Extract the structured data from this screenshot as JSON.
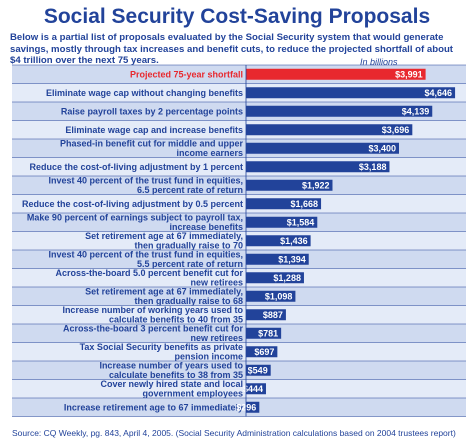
{
  "colors": {
    "title": "#22439a",
    "bar": "#22439a",
    "highlight": "#e8282e",
    "row_a": "#cfdaf0",
    "row_b": "#e4ebf8",
    "divider": "#22439a"
  },
  "header": {
    "title": "Social Security Cost-Saving Proposals",
    "intro": "Below is a partial list of proposals evaluated by the Social Security system that would generate savings, mostly through tax increases and benefit cuts, to reduce the projected shortfall of about $4 trillion over the next 75 years."
  },
  "chart_data": {
    "type": "bar",
    "orientation": "horizontal",
    "unit_label": "In billions",
    "xlim": [
      0,
      4800
    ],
    "categories": [
      [
        "Projected 75-year shortfall"
      ],
      [
        "Eliminate wage cap without changing benefits"
      ],
      [
        "Raise payroll taxes by 2 percentage points"
      ],
      [
        "Eliminate wage cap and increase benefits"
      ],
      [
        "Phased-in benefit cut for middle and upper",
        "income earners"
      ],
      [
        "Reduce the cost-of-living adjustment by 1 percent"
      ],
      [
        "Invest 40 percent of the trust fund in equities,",
        "6.5 percent rate of return"
      ],
      [
        "Reduce the cost-of-living adjustment by 0.5 percent"
      ],
      [
        "Make 90 percent of earnings subject to payroll tax,",
        "increase benefits"
      ],
      [
        "Set retirement age at 67 immediately,",
        "then gradually raise to 70"
      ],
      [
        "Invest 40 percent of the trust fund in equities,",
        "5.5 percent rate of return"
      ],
      [
        "Across-the-board 5.0 percent benefit cut for",
        "new retirees"
      ],
      [
        "Set retirement age at 67 immediately,",
        "then gradually raise to 68"
      ],
      [
        "Increase number of working years used to",
        "calculate benefits to 40 from 35"
      ],
      [
        "Across-the-board 3 percent benefit cut for",
        "new retirees"
      ],
      [
        "Tax Social Security benefits as private",
        "pension income"
      ],
      [
        "Increase number of years used to",
        "calculate benefits to 38 from 35"
      ],
      [
        "Cover newly hired state and local",
        "government employees"
      ],
      [
        "Increase retirement age to 67 immediately"
      ]
    ],
    "values": [
      3991,
      4646,
      4139,
      3696,
      3400,
      3188,
      1922,
      1668,
      1584,
      1436,
      1394,
      1288,
      1098,
      887,
      781,
      697,
      549,
      444,
      296
    ],
    "value_labels": [
      "$3,991",
      "$4,646",
      "$4,139",
      "$3,696",
      "$3,400",
      "$3,188",
      "$1,922",
      "$1,668",
      "$1,584",
      "$1,436",
      "$1,394",
      "$1,288",
      "$1,098",
      "$887",
      "$781",
      "$697",
      "$549",
      "$444",
      "$296"
    ],
    "highlight_index": 0
  },
  "footer": {
    "source": "Source: CQ Weekly, pg. 843, April 4, 2005. (Social Security Administration calculations based on 2004 trustees report)"
  }
}
